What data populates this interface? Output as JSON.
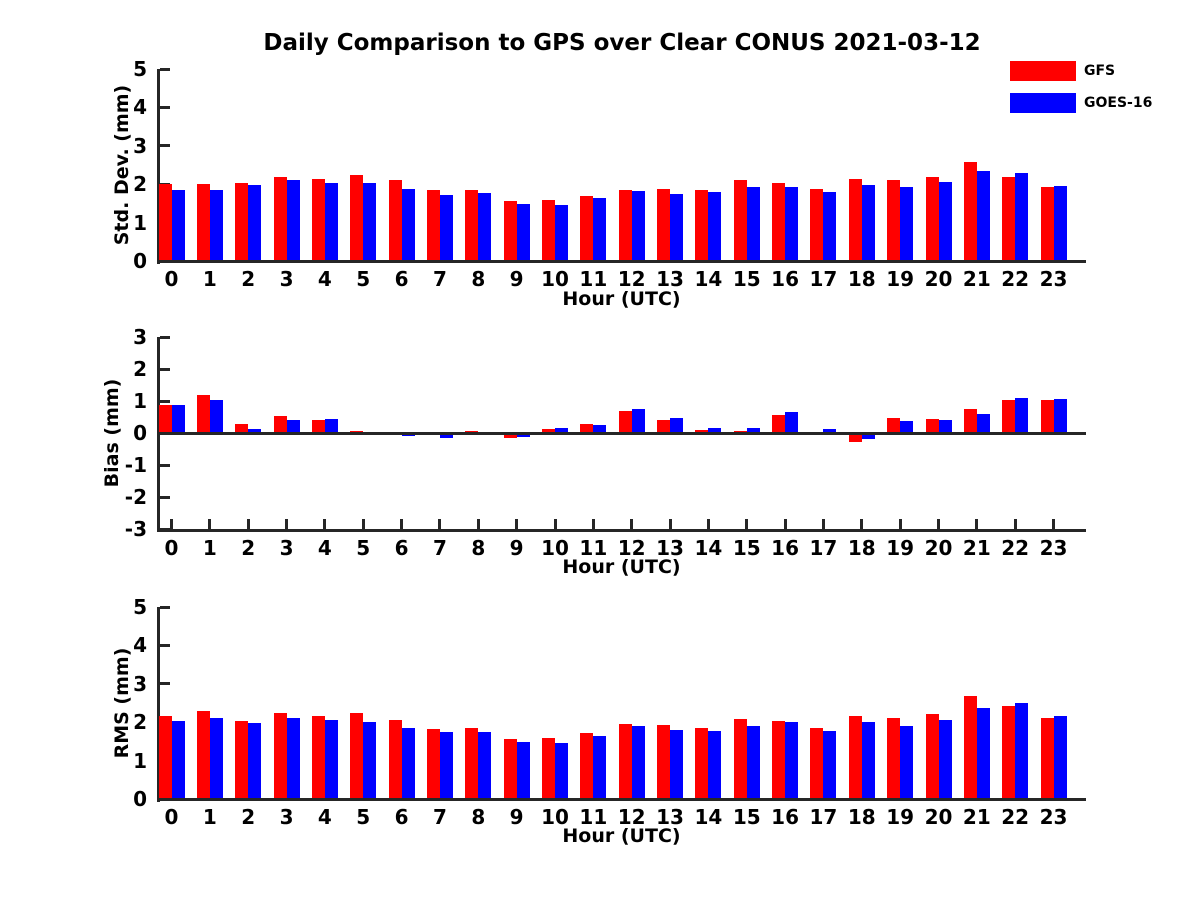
{
  "figure": {
    "title": "Daily Comparison to GPS over Clear CONUS 2021-03-12",
    "background": "#ffffff"
  },
  "legend": {
    "position": "top-right",
    "items": [
      {
        "label": "GFS",
        "color": "#ff0000"
      },
      {
        "label": "GOES-16",
        "color": "#0000ff"
      }
    ]
  },
  "chart_data": [
    {
      "type": "bar",
      "title": "",
      "ylabel": "Std. Dev. (mm)",
      "xlabel": "Hour (UTC)",
      "ylim": [
        0,
        5
      ],
      "yticks": [
        0,
        1,
        2,
        3,
        4,
        5
      ],
      "grid": false,
      "categories": [
        0,
        1,
        2,
        3,
        4,
        5,
        6,
        7,
        8,
        9,
        10,
        11,
        12,
        13,
        14,
        15,
        16,
        17,
        18,
        19,
        20,
        21,
        22,
        23
      ],
      "series": [
        {
          "name": "GFS",
          "color": "#ff0000",
          "values": [
            2.0,
            2.0,
            2.03,
            2.2,
            2.13,
            2.25,
            2.1,
            1.85,
            1.85,
            1.55,
            1.6,
            1.7,
            1.84,
            1.88,
            1.86,
            2.12,
            2.02,
            1.88,
            2.14,
            2.1,
            2.2,
            2.58,
            2.2,
            1.93
          ]
        },
        {
          "name": "GOES-16",
          "color": "#0000ff",
          "values": [
            1.85,
            1.85,
            1.97,
            2.1,
            2.02,
            2.02,
            1.88,
            1.73,
            1.78,
            1.48,
            1.45,
            1.63,
            1.81,
            1.74,
            1.8,
            1.93,
            1.92,
            1.8,
            1.99,
            1.92,
            2.07,
            2.35,
            2.28,
            1.95
          ]
        }
      ]
    },
    {
      "type": "bar",
      "title": "",
      "ylabel": "Bias (mm)",
      "xlabel": "Hour (UTC)",
      "ylim": [
        -3,
        3
      ],
      "yticks": [
        -3,
        -2,
        -1,
        0,
        1,
        2,
        3
      ],
      "grid": false,
      "categories": [
        0,
        1,
        2,
        3,
        4,
        5,
        6,
        7,
        8,
        9,
        10,
        11,
        12,
        13,
        14,
        15,
        16,
        17,
        18,
        19,
        20,
        21,
        22,
        23
      ],
      "series": [
        {
          "name": "GFS",
          "color": "#ff0000",
          "values": [
            0.86,
            1.18,
            0.27,
            0.52,
            0.4,
            0.07,
            -0.02,
            -0.03,
            0.07,
            -0.15,
            0.11,
            0.29,
            0.7,
            0.4,
            0.1,
            0.06,
            0.55,
            0.03,
            -0.28,
            0.48,
            0.45,
            0.74,
            1.02,
            1.03
          ]
        },
        {
          "name": "GOES-16",
          "color": "#0000ff",
          "values": [
            0.86,
            1.04,
            0.11,
            0.41,
            0.45,
            0.0,
            -0.08,
            -0.17,
            -0.02,
            -0.13,
            0.15,
            0.26,
            0.76,
            0.48,
            0.16,
            0.17,
            0.66,
            0.14,
            -0.18,
            0.38,
            0.4,
            0.6,
            1.09,
            1.07
          ]
        }
      ]
    },
    {
      "type": "bar",
      "title": "",
      "ylabel": "RMS (mm)",
      "xlabel": "Hour (UTC)",
      "ylim": [
        0,
        5
      ],
      "yticks": [
        0,
        1,
        2,
        3,
        4,
        5
      ],
      "grid": false,
      "categories": [
        0,
        1,
        2,
        3,
        4,
        5,
        6,
        7,
        8,
        9,
        10,
        11,
        12,
        13,
        14,
        15,
        16,
        17,
        18,
        19,
        20,
        21,
        22,
        23
      ],
      "series": [
        {
          "name": "GFS",
          "color": "#ff0000",
          "values": [
            2.15,
            2.3,
            2.03,
            2.25,
            2.15,
            2.25,
            2.07,
            1.82,
            1.85,
            1.55,
            1.6,
            1.72,
            1.95,
            1.93,
            1.84,
            2.09,
            2.03,
            1.86,
            2.15,
            2.12,
            2.22,
            2.67,
            2.42,
            2.11
          ]
        },
        {
          "name": "GOES-16",
          "color": "#0000ff",
          "values": [
            2.02,
            2.1,
            1.97,
            2.1,
            2.05,
            2.0,
            1.85,
            1.75,
            1.75,
            1.48,
            1.45,
            1.65,
            1.91,
            1.79,
            1.77,
            1.89,
            2.0,
            1.77,
            2.0,
            1.91,
            2.07,
            2.37,
            2.51,
            2.15
          ]
        }
      ]
    }
  ]
}
